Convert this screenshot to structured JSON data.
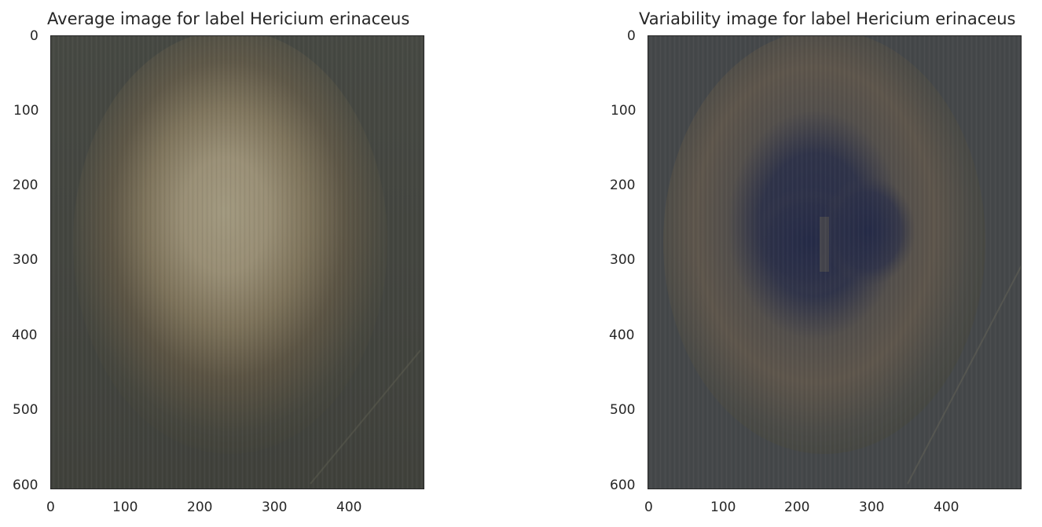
{
  "chart_data": [
    {
      "type": "heatmap",
      "title": "Average image for label Hericium erinaceus",
      "xlabel": "",
      "ylabel": "",
      "xlim": [
        0,
        500
      ],
      "ylim": [
        600,
        0
      ],
      "x_ticks": [
        "0",
        "100",
        "200",
        "300",
        "400"
      ],
      "y_ticks": [
        "0",
        "100",
        "200",
        "300",
        "400",
        "500",
        "600"
      ],
      "grid": false,
      "colors": {
        "background": "#4a4a44",
        "center": "#d2c4a0",
        "mid": "#8a7a5c",
        "edge": "#3e403a"
      }
    },
    {
      "type": "heatmap",
      "title": "Variability image for label Hericium erinaceus",
      "xlabel": "",
      "ylabel": "",
      "xlim": [
        0,
        500
      ],
      "ylim": [
        600,
        0
      ],
      "x_ticks": [
        "0",
        "100",
        "200",
        "300",
        "400"
      ],
      "y_ticks": [
        "0",
        "100",
        "200",
        "300",
        "400",
        "500",
        "600"
      ],
      "grid": false,
      "colors": {
        "background": "#474a4c",
        "center": "#2a2f4a",
        "ring": "#5e564c",
        "edge": "#42453f"
      }
    }
  ]
}
